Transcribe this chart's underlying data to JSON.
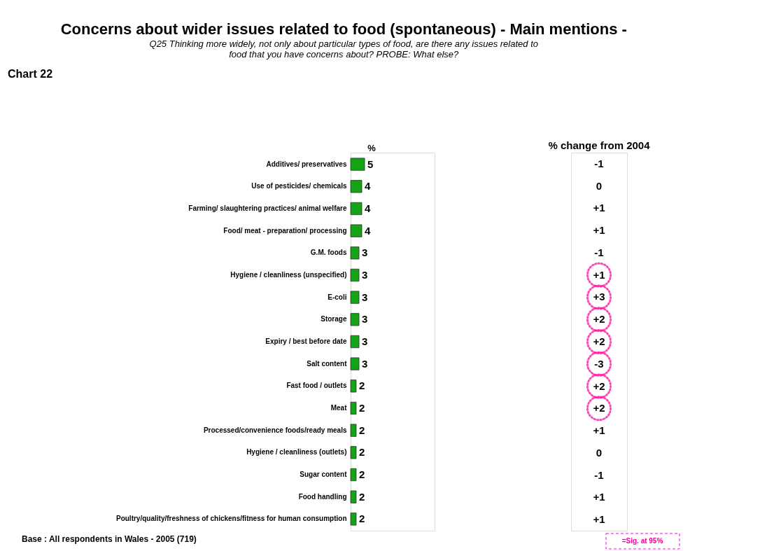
{
  "chart_data": [
    {
      "type": "bar",
      "orientation": "horizontal",
      "title": "Concerns about wider issues related to food (spontaneous) - Main mentions -",
      "subtitle": "Q25 Thinking more widely, not only about particular types of food, are there any issues related to food that you have concerns about? PROBE: What else?",
      "xlabel": "%",
      "categories": [
        "Additives/ preservatives",
        "Use of pesticides/ chemicals",
        "Farming/ slaughtering practices/ animal welfare",
        "Food/ meat - preparation/ processing",
        "G.M. foods",
        "Hygiene / cleanliness  (unspecified)",
        "E-coli",
        "Storage",
        "Expiry / best before date",
        "Salt content",
        "Fast food / outlets",
        "Meat",
        "Processed/convenience foods/ready meals",
        "Hygiene / cleanliness  (outlets)",
        "Sugar content",
        "Food handling",
        "Poultry/quality/freshness of chickens/fitness for human consumption"
      ],
      "values": [
        5,
        4,
        4,
        4,
        3,
        3,
        3,
        3,
        3,
        3,
        2,
        2,
        2,
        2,
        2,
        2,
        2
      ],
      "color": "#14a314",
      "data_labels": true,
      "annotations": [
        "Chart 22",
        "Base : All respondents in Wales - 2005 (719)"
      ]
    },
    {
      "type": "other",
      "title": "% change from 2004",
      "categories": [
        null,
        null,
        null,
        null,
        null,
        null,
        null,
        null,
        null,
        null,
        null,
        null,
        null,
        null,
        null,
        null,
        null
      ],
      "values": [
        -1,
        0,
        1,
        1,
        -1,
        1,
        3,
        2,
        2,
        -3,
        2,
        2,
        1,
        0,
        -1,
        1,
        1
      ],
      "value_labels": [
        "-1",
        "0",
        "+1",
        "+1",
        "-1",
        "+1",
        "+3",
        "+2",
        "+2",
        "-3",
        "+2",
        "+2",
        "+1",
        "0",
        "-1",
        "+1",
        "+1"
      ],
      "colors": [
        null,
        null,
        null,
        null,
        null,
        "#ff0099",
        "#ff0099",
        "#ff0099",
        "#ff0099",
        "#ff0099",
        "#ff0099",
        "#ff0099",
        null,
        null,
        null,
        null,
        null
      ],
      "annotations": [
        "=Sig. at 95%"
      ]
    }
  ]
}
